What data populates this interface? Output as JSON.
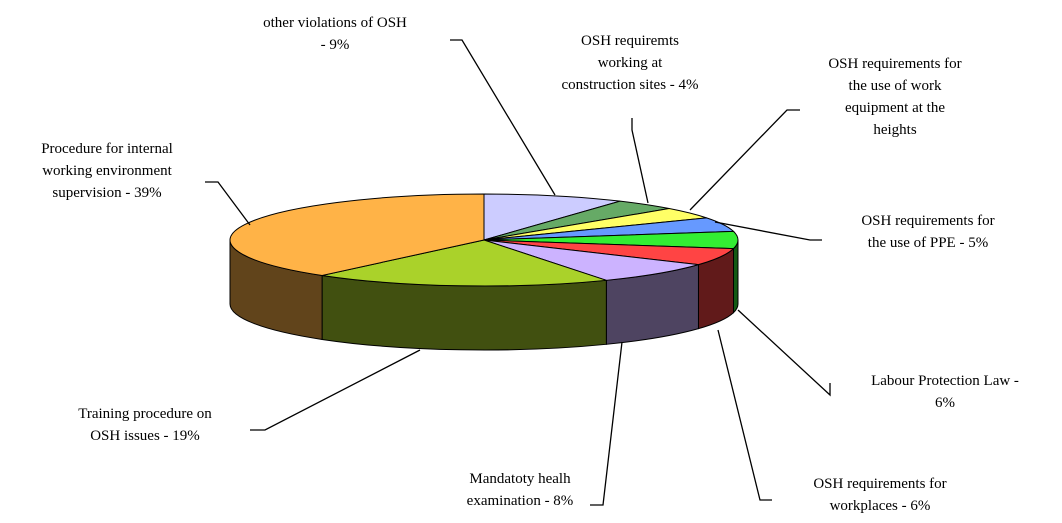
{
  "chart_data": {
    "type": "pie3d",
    "categories": [
      "other violations of OSH\n- 9%",
      "OSH requiremts\nworking at\nconstruction sites -  4%",
      "OSH requirements for\nthe use of work\nequipment at the\nheights",
      "OSH requirements for\nthe use of PPE - 5%",
      "Labour Protection Law -\n6%",
      "OSH requirements for\nworkplaces - 6%",
      "Mandatoty healh\nexamination - 8%",
      "Training procedure on\nOSH issues - 19%",
      "Procedure for internal\nworking environment\nsupervision - 39%"
    ],
    "values": [
      9,
      4,
      4,
      5,
      6,
      6,
      8,
      19,
      39
    ],
    "colors": [
      "#ccccff",
      "#66aa66",
      "#ffff66",
      "#6699ff",
      "#33ee33",
      "#ff4444",
      "#ccb3ff",
      "#aad22a",
      "#ffb347"
    ]
  }
}
